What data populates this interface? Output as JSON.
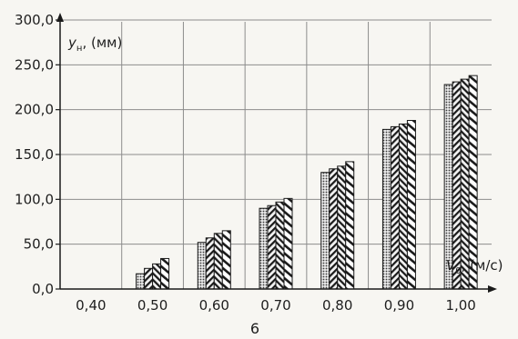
{
  "chart_data": {
    "type": "bar",
    "categories": [
      "0,40",
      "0,50",
      "0,60",
      "0,70",
      "0,80",
      "0,90",
      "1,00"
    ],
    "series": [
      {
        "values": [
          0,
          17,
          52,
          90,
          130,
          178,
          228
        ]
      },
      {
        "values": [
          0,
          23,
          57,
          93,
          134,
          181,
          231
        ]
      },
      {
        "values": [
          0,
          28,
          62,
          97,
          137,
          184,
          234
        ]
      },
      {
        "values": [
          0,
          34,
          65,
          101,
          142,
          188,
          238
        ]
      }
    ],
    "yticks": [
      "0,0",
      "50,0",
      "100,0",
      "150,0",
      "200,0",
      "250,0",
      "300,0"
    ],
    "ylim": [
      0,
      300
    ],
    "ylabel": "yₙ, (мм)",
    "xlabel": "V₀, (м/с)",
    "sublabel": "6",
    "grid": true,
    "colors": {
      "grid": "#8c8c8c",
      "bar_edge": "#1a1a1a",
      "text": "#1e1e1e"
    }
  }
}
